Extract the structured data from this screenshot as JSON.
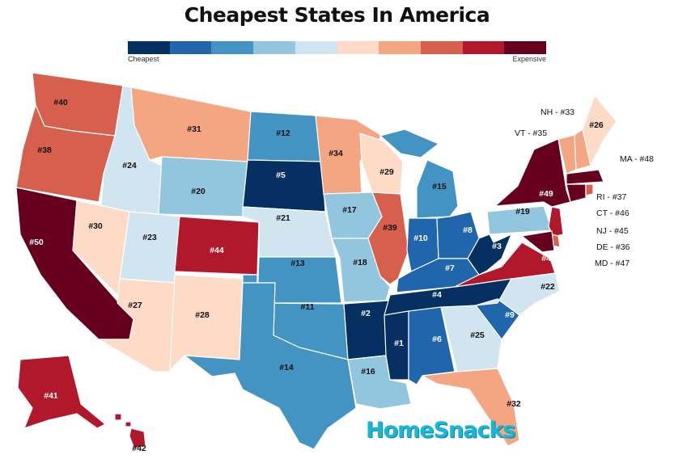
{
  "title": "Cheapest States In America",
  "legend": {
    "low_label": "Cheapest",
    "high_label": "Expensive",
    "colors": [
      "#053061",
      "#2166ac",
      "#4393c3",
      "#92c5de",
      "#d1e5f0",
      "#fddbc7",
      "#f4a582",
      "#d6604d",
      "#b2182b",
      "#67001f"
    ],
    "ranks_per_bin": 5
  },
  "states": [
    {
      "abbr": "WA",
      "label": "#40"
    },
    {
      "abbr": "OR",
      "label": "#38"
    },
    {
      "abbr": "CA",
      "label": "#50"
    },
    {
      "abbr": "ID",
      "label": "#24"
    },
    {
      "abbr": "NV",
      "label": "#30"
    },
    {
      "abbr": "MT",
      "label": "#31"
    },
    {
      "abbr": "WY",
      "label": "#20"
    },
    {
      "abbr": "UT",
      "label": "#23"
    },
    {
      "abbr": "AZ",
      "label": "#27"
    },
    {
      "abbr": "CO",
      "label": "#44"
    },
    {
      "abbr": "NM",
      "label": "#28"
    },
    {
      "abbr": "ND",
      "label": "#12"
    },
    {
      "abbr": "SD",
      "label": "#5"
    },
    {
      "abbr": "NE",
      "label": "#21"
    },
    {
      "abbr": "KS",
      "label": "#13"
    },
    {
      "abbr": "OK",
      "label": "#11"
    },
    {
      "abbr": "TX",
      "label": "#14"
    },
    {
      "abbr": "MN",
      "label": "#34"
    },
    {
      "abbr": "IA",
      "label": "#17"
    },
    {
      "abbr": "MO",
      "label": "#18"
    },
    {
      "abbr": "AR",
      "label": "#2"
    },
    {
      "abbr": "LA",
      "label": "#16"
    },
    {
      "abbr": "WI",
      "label": "#29"
    },
    {
      "abbr": "IL",
      "label": "#39"
    },
    {
      "abbr": "MI",
      "label": "#15"
    },
    {
      "abbr": "IN",
      "label": "#10"
    },
    {
      "abbr": "OH",
      "label": "#8"
    },
    {
      "abbr": "KY",
      "label": "#7"
    },
    {
      "abbr": "TN",
      "label": "#4"
    },
    {
      "abbr": "MS",
      "label": "#1"
    },
    {
      "abbr": "AL",
      "label": "#6"
    },
    {
      "abbr": "GA",
      "label": "#25"
    },
    {
      "abbr": "FL",
      "label": "#32"
    },
    {
      "abbr": "SC",
      "label": "#9"
    },
    {
      "abbr": "NC",
      "label": "#22"
    },
    {
      "abbr": "VA",
      "label": "#43"
    },
    {
      "abbr": "WV",
      "label": "#3"
    },
    {
      "abbr": "PA",
      "label": "#19"
    },
    {
      "abbr": "NY",
      "label": "#49"
    },
    {
      "abbr": "ME",
      "label": "#26"
    },
    {
      "abbr": "AK",
      "label": "#41"
    },
    {
      "abbr": "HI",
      "label": "#42"
    }
  ],
  "small_states": [
    {
      "abbr": "NH",
      "label": "NH - #33"
    },
    {
      "abbr": "VT",
      "label": "VT - #35"
    },
    {
      "abbr": "MA",
      "label": "MA - #48"
    },
    {
      "abbr": "RI",
      "label": "RI - #37"
    },
    {
      "abbr": "CT",
      "label": "CT - #46"
    },
    {
      "abbr": "NJ",
      "label": "NJ - #45"
    },
    {
      "abbr": "DE",
      "label": "DE - #36"
    },
    {
      "abbr": "MD",
      "label": "MD - #47"
    }
  ],
  "logo": "HomeSnacks"
}
